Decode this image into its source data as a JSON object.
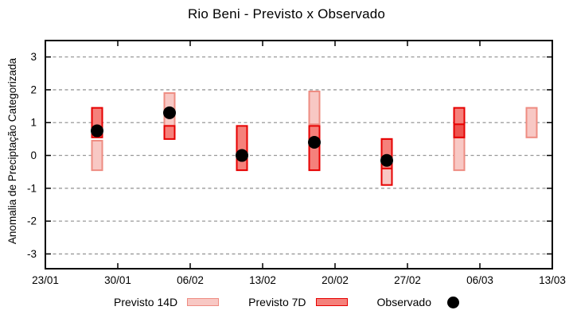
{
  "title": "Rio Beni - Previsto x Observado",
  "colors": {
    "pink_fill": "#f8c8c4",
    "pink_border": "#ee8c82",
    "red_fill": "#f5817b",
    "red_dark_fill": "#ee534e",
    "red_border": "#e60000",
    "dot": "#000000",
    "grid": "#999999",
    "axis": "#000000",
    "text": "#000000"
  },
  "legend": {
    "items": [
      {
        "label": "Previsto 14D",
        "swatch": "pink-box"
      },
      {
        "label": "Previsto 7D",
        "swatch": "red-box"
      },
      {
        "label": "Observado",
        "swatch": "black-dot"
      }
    ]
  },
  "chart_data": {
    "type": "range-bar+scatter",
    "title": "Rio Beni - Previsto x Observado",
    "xlabel": "",
    "ylabel": "Anomalia de Preciptação Categorizada",
    "ylim": [
      -3.45,
      3.5
    ],
    "yticks": [
      3,
      2,
      1,
      0,
      -1,
      -2,
      -3
    ],
    "grid": "horizontal-dashed",
    "legend_position": "bottom",
    "x_axis": {
      "span_days": 49,
      "ticks": [
        {
          "label": "23/01",
          "day": 0
        },
        {
          "label": "30/01",
          "day": 7
        },
        {
          "label": "06/02",
          "day": 14
        },
        {
          "label": "13/02",
          "day": 21
        },
        {
          "label": "20/02",
          "day": 28
        },
        {
          "label": "27/02",
          "day": 35
        },
        {
          "label": "06/03",
          "day": 42
        },
        {
          "label": "13/03",
          "day": 49
        }
      ]
    },
    "clusters": [
      {
        "date": "28/01",
        "day": 5,
        "previsto_14d": [
          -0.45,
          0.45
        ],
        "previsto_7d": [
          0.55,
          1.45
        ],
        "observado": 0.75,
        "boxes": [
          {
            "lo": 0.55,
            "hi": 1.45,
            "style": "red"
          },
          {
            "lo": -0.45,
            "hi": 0.45,
            "style": "pink"
          }
        ]
      },
      {
        "date": "04/02",
        "day": 12,
        "previsto_14d": [
          0.9,
          1.9
        ],
        "previsto_7d": [
          0.5,
          0.9
        ],
        "observado": 1.3,
        "boxes": [
          {
            "lo": 0.9,
            "hi": 1.9,
            "style": "pink"
          },
          {
            "lo": 0.5,
            "hi": 0.9,
            "style": "red"
          }
        ]
      },
      {
        "date": "11/02",
        "day": 19,
        "previsto_14d": null,
        "previsto_7d": [
          -0.45,
          0.9
        ],
        "observado": 0.0,
        "boxes": [
          {
            "lo": -0.45,
            "hi": 0.9,
            "style": "red"
          }
        ]
      },
      {
        "date": "18/02",
        "day": 26,
        "previsto_14d": [
          0.95,
          1.95
        ],
        "previsto_7d": [
          -0.45,
          0.9
        ],
        "observado": 0.4,
        "boxes": [
          {
            "lo": 0.95,
            "hi": 1.95,
            "style": "pink"
          },
          {
            "lo": -0.45,
            "hi": 0.9,
            "style": "red"
          }
        ]
      },
      {
        "date": "25/02",
        "day": 33,
        "previsto_14d": [
          -0.9,
          0.5
        ],
        "previsto_7d": [
          -0.4,
          0.5
        ],
        "observado": -0.15,
        "boxes": [
          {
            "lo": -0.9,
            "hi": 0.5,
            "style": "pink_red"
          },
          {
            "lo": -0.4,
            "hi": 0.5,
            "style": "red"
          }
        ]
      },
      {
        "date": "04/03",
        "day": 40,
        "previsto_14d": [
          -0.45,
          0.95
        ],
        "previsto_7d": [
          0.55,
          1.45
        ],
        "observado": null,
        "boxes": [
          {
            "lo": -0.45,
            "hi": 0.55,
            "style": "pink"
          },
          {
            "lo": 0.55,
            "hi": 1.45,
            "style": "red"
          },
          {
            "lo": 0.55,
            "hi": 0.95,
            "style": "red_dark"
          }
        ]
      },
      {
        "date": "11/03",
        "day": 47,
        "previsto_14d": [
          0.55,
          1.45
        ],
        "previsto_7d": null,
        "observado": null,
        "boxes": [
          {
            "lo": 0.55,
            "hi": 1.45,
            "style": "pink"
          }
        ]
      }
    ],
    "observed_points": [
      {
        "date": "28/01",
        "value": 0.75
      },
      {
        "date": "04/02",
        "value": 1.3
      },
      {
        "date": "11/02",
        "value": 0.0
      },
      {
        "date": "18/02",
        "value": 0.4
      },
      {
        "date": "25/02",
        "value": -0.15
      }
    ]
  }
}
